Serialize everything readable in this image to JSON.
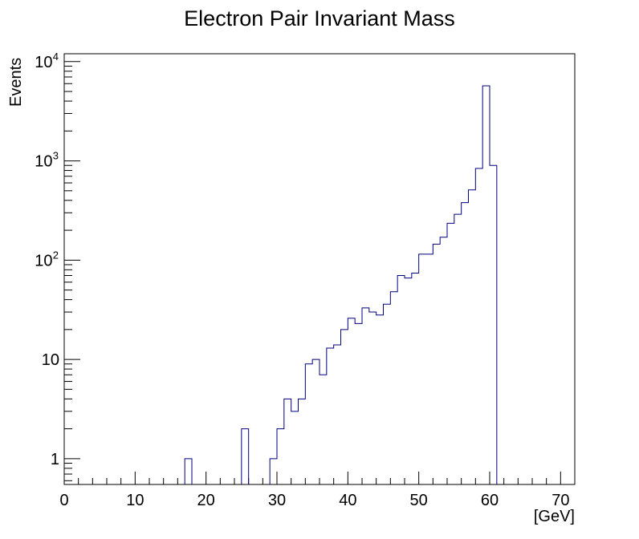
{
  "chart_data": {
    "type": "histogram",
    "title": "Electron Pair Invariant Mass",
    "xlabel": "[GeV]",
    "ylabel": "Events",
    "xlim": [
      0,
      72
    ],
    "ylim": [
      0.55,
      12000
    ],
    "yscale": "log",
    "grid": false,
    "legend": "none",
    "bin_width": 1,
    "x_ticks": [
      0,
      10,
      20,
      30,
      40,
      50,
      60,
      70
    ],
    "x_tick_labels": [
      "0",
      "10",
      "20",
      "30",
      "40",
      "50",
      "60",
      "70"
    ],
    "y_ticks": [
      1,
      10,
      100,
      1000,
      10000
    ],
    "y_tick_labels": [
      {
        "base": "1",
        "exp": ""
      },
      {
        "base": "10",
        "exp": ""
      },
      {
        "base": "10",
        "exp": "2"
      },
      {
        "base": "10",
        "exp": "3"
      },
      {
        "base": "10",
        "exp": "4"
      }
    ],
    "series": [
      {
        "color": "#000080",
        "bin_edges_start": [
          17,
          25,
          29,
          30,
          31,
          32,
          33,
          34,
          35,
          36,
          37,
          38,
          39,
          40,
          41,
          42,
          43,
          44,
          45,
          46,
          47,
          48,
          49,
          50,
          51,
          52,
          53,
          54,
          55,
          56,
          57,
          58,
          59,
          60
        ],
        "values": [
          1,
          2,
          1,
          2,
          4,
          3,
          4,
          9,
          10,
          7,
          13,
          14,
          20,
          26,
          23,
          33,
          30,
          28,
          36,
          48,
          70,
          66,
          74,
          115,
          115,
          145,
          170,
          235,
          290,
          380,
          510,
          840,
          5700,
          900
        ]
      }
    ]
  }
}
